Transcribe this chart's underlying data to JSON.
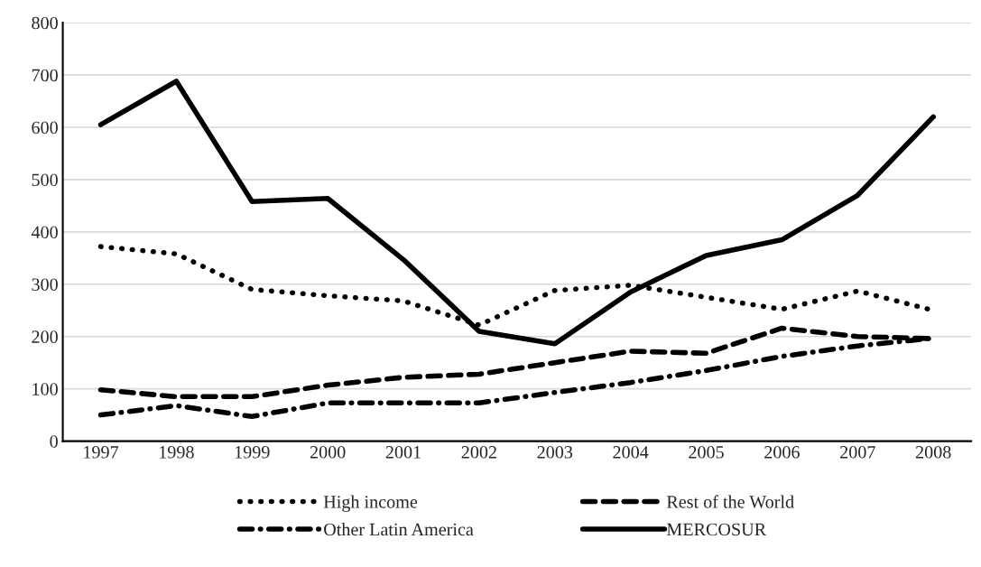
{
  "chart_data": {
    "type": "line",
    "categories": [
      "1997",
      "1998",
      "1999",
      "2000",
      "2001",
      "2002",
      "2003",
      "2004",
      "2005",
      "2006",
      "2007",
      "2008"
    ],
    "series": [
      {
        "name": "High income",
        "color": "#000000",
        "line_style": "dotted",
        "values": [
          372,
          358,
          290,
          278,
          268,
          222,
          288,
          298,
          275,
          252,
          287,
          250
        ]
      },
      {
        "name": "Rest of the World",
        "color": "#000000",
        "line_style": "dashed",
        "values": [
          98,
          85,
          85,
          107,
          122,
          128,
          150,
          172,
          168,
          216,
          200,
          196
        ]
      },
      {
        "name": "Other Latin America",
        "color": "#000000",
        "line_style": "dashdot",
        "values": [
          50,
          68,
          47,
          73,
          73,
          73,
          93,
          112,
          135,
          162,
          182,
          197
        ]
      },
      {
        "name": "MERCOSUR",
        "color": "#000000",
        "line_style": "solid",
        "values": [
          605,
          688,
          458,
          464,
          347,
          210,
          186,
          285,
          355,
          385,
          470,
          620
        ]
      }
    ],
    "ylim": [
      0,
      800
    ],
    "yticks": [
      0,
      100,
      200,
      300,
      400,
      500,
      600,
      700,
      800
    ],
    "grid": "y",
    "legend": "bottom",
    "marker": "none"
  }
}
